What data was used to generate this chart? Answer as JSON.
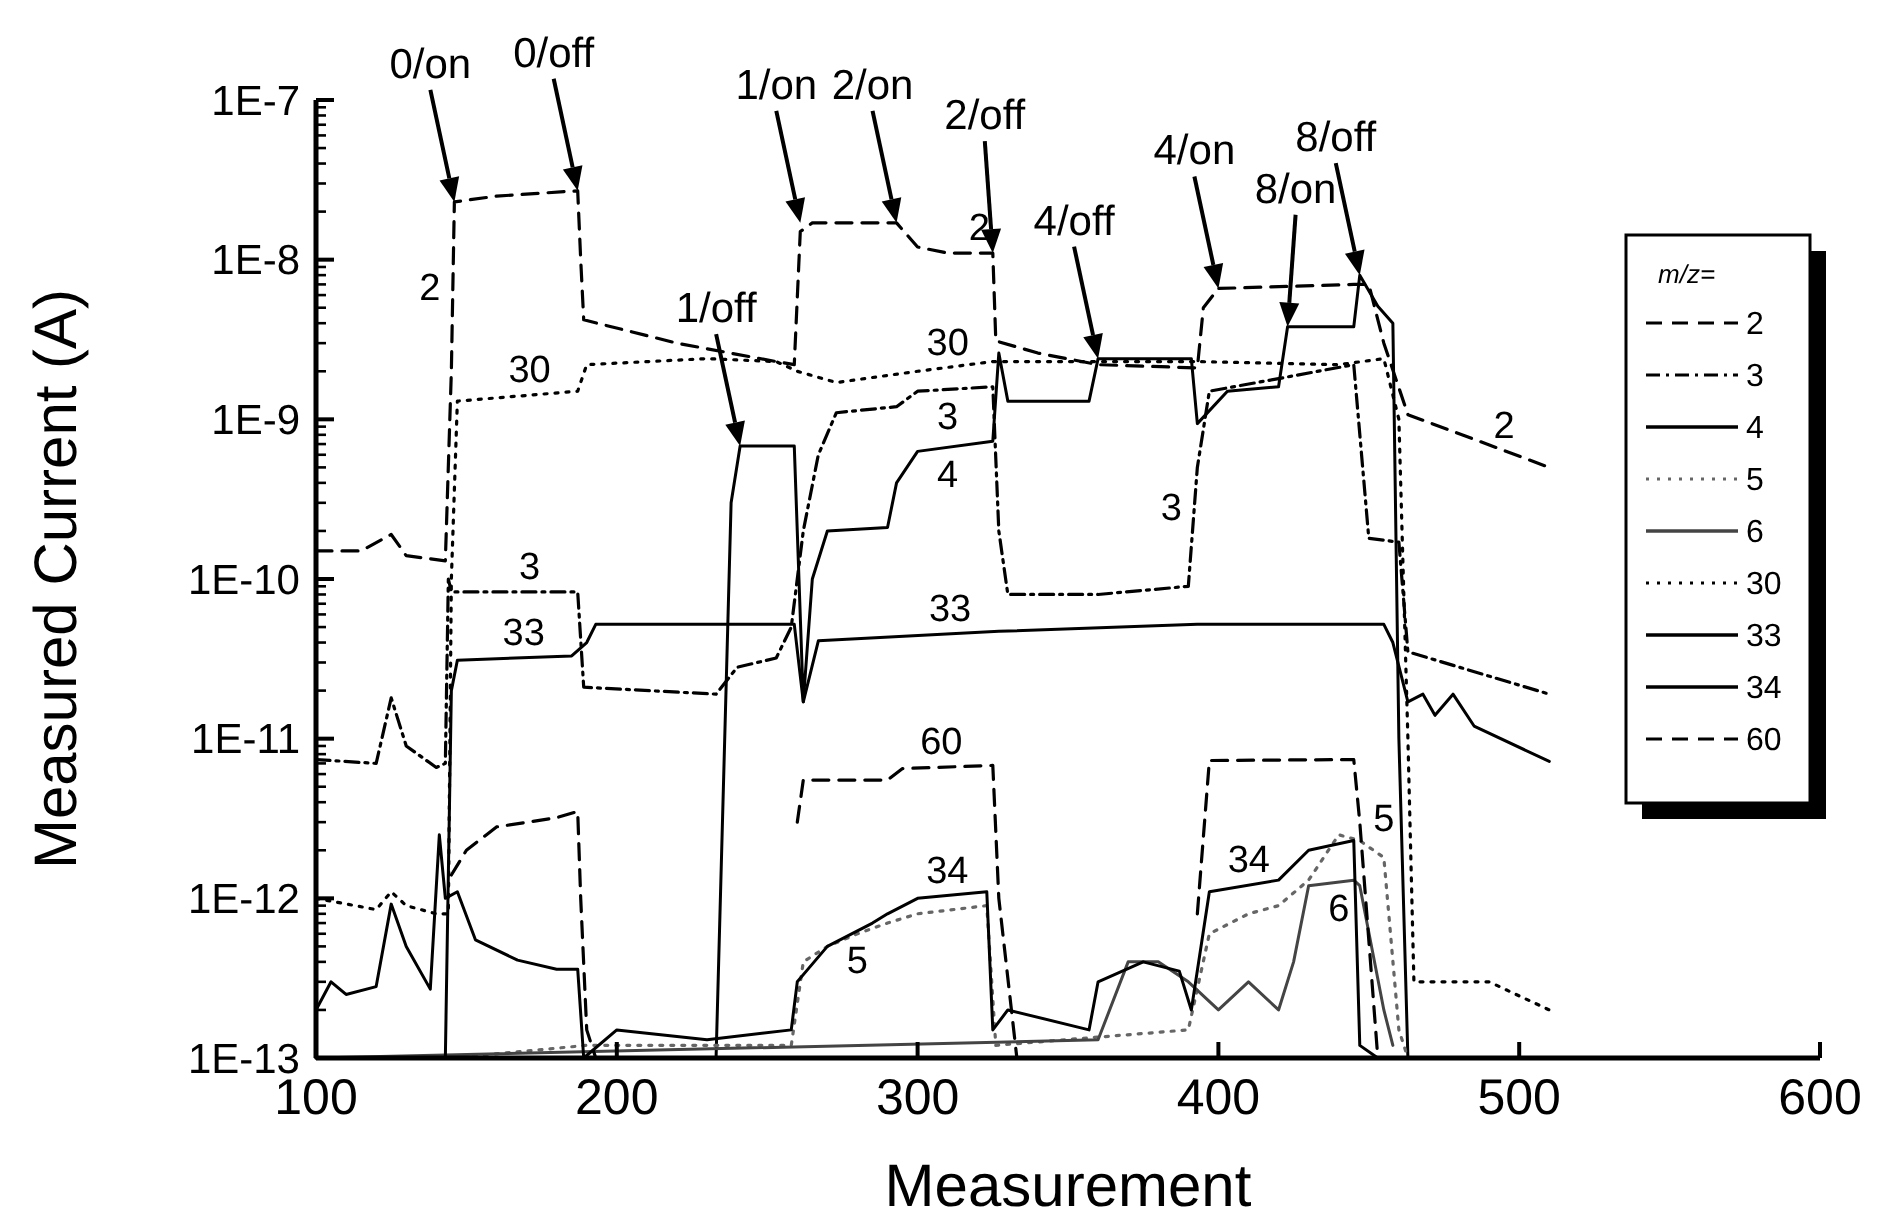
{
  "chart_data": {
    "type": "line",
    "xlabel": "Measurement",
    "ylabel": "Measured Current (A)",
    "legend_title": "m/z=",
    "legend": "right",
    "log": "y",
    "grid": false,
    "xlim": [
      100,
      600
    ],
    "xticks": [
      100,
      200,
      300,
      400,
      500,
      600
    ],
    "ylim": [
      1e-13,
      1e-07
    ],
    "yticks": [
      {
        "value": 1e-13,
        "label": "1E-13"
      },
      {
        "value": 2e-13,
        "label": null
      },
      {
        "value": 3e-13,
        "label": null
      },
      {
        "value": 4e-13,
        "label": null
      },
      {
        "value": 5e-13,
        "label": null
      },
      {
        "value": 6e-13,
        "label": null
      },
      {
        "value": 7e-13,
        "label": null
      },
      {
        "value": 8e-13,
        "label": null
      },
      {
        "value": 9e-13,
        "label": null
      },
      {
        "value": 1e-12,
        "label": "1E-12"
      },
      {
        "value": 2e-12,
        "label": null
      },
      {
        "value": 3e-12,
        "label": null
      },
      {
        "value": 4e-12,
        "label": null
      },
      {
        "value": 5e-12,
        "label": null
      },
      {
        "value": 6e-12,
        "label": null
      },
      {
        "value": 7e-12,
        "label": null
      },
      {
        "value": 8e-12,
        "label": null
      },
      {
        "value": 9e-12,
        "label": null
      },
      {
        "value": 1e-11,
        "label": "1E-11"
      },
      {
        "value": 2e-11,
        "label": null
      },
      {
        "value": 3e-11,
        "label": null
      },
      {
        "value": 4e-11,
        "label": null
      },
      {
        "value": 5e-11,
        "label": null
      },
      {
        "value": 6e-11,
        "label": null
      },
      {
        "value": 7e-11,
        "label": null
      },
      {
        "value": 8e-11,
        "label": null
      },
      {
        "value": 9e-11,
        "label": null
      },
      {
        "value": 1e-10,
        "label": "1E-10"
      },
      {
        "value": 2e-10,
        "label": null
      },
      {
        "value": 3e-10,
        "label": null
      },
      {
        "value": 4e-10,
        "label": null
      },
      {
        "value": 5e-10,
        "label": null
      },
      {
        "value": 6e-10,
        "label": null
      },
      {
        "value": 7e-10,
        "label": null
      },
      {
        "value": 8e-10,
        "label": null
      },
      {
        "value": 9e-10,
        "label": null
      },
      {
        "value": 1e-09,
        "label": "1E-9"
      },
      {
        "value": 2e-09,
        "label": null
      },
      {
        "value": 3e-09,
        "label": null
      },
      {
        "value": 4e-09,
        "label": null
      },
      {
        "value": 5e-09,
        "label": null
      },
      {
        "value": 6e-09,
        "label": null
      },
      {
        "value": 7e-09,
        "label": null
      },
      {
        "value": 8e-09,
        "label": null
      },
      {
        "value": 9e-09,
        "label": null
      },
      {
        "value": 1e-08,
        "label": "1E-8"
      },
      {
        "value": 2e-08,
        "label": null
      },
      {
        "value": 3e-08,
        "label": null
      },
      {
        "value": 4e-08,
        "label": null
      },
      {
        "value": 5e-08,
        "label": null
      },
      {
        "value": 6e-08,
        "label": null
      },
      {
        "value": 7e-08,
        "label": null
      },
      {
        "value": 8e-08,
        "label": null
      },
      {
        "value": 9e-08,
        "label": null
      },
      {
        "value": 1e-07,
        "label": "1E-7"
      }
    ],
    "series": [
      {
        "name": "2",
        "color": "#000000",
        "line_style": "dashed",
        "x": [
          100,
          115,
          125,
          130,
          143,
          145,
          146,
          160,
          187,
          188,
          189,
          220,
          253,
          259,
          261,
          265,
          293,
          300,
          310,
          325,
          326,
          340,
          360,
          393,
          395,
          400,
          445,
          450,
          455,
          463,
          510
        ],
        "values": [
          1.5e-10,
          1.5e-10,
          1.9e-10,
          1.4e-10,
          1.3e-10,
          2e-09,
          2.3e-08,
          2.5e-08,
          2.7e-08,
          1e-08,
          4.2e-09,
          3e-09,
          2.3e-09,
          2.2e-09,
          1.5e-08,
          1.7e-08,
          1.7e-08,
          1.2e-08,
          1.1e-08,
          1.1e-08,
          3.1e-09,
          2.6e-09,
          2.2e-09,
          2.1e-09,
          5e-09,
          6.6e-09,
          7e-09,
          7e-09,
          3e-09,
          1.07e-09,
          5e-10
        ]
      },
      {
        "name": "3",
        "color": "#000000",
        "line_style": "dashdot",
        "x": [
          100,
          120,
          125,
          130,
          140,
          143,
          144,
          145,
          187,
          189,
          233,
          240,
          253,
          258,
          262,
          267,
          273,
          293,
          300,
          325,
          327,
          330,
          360,
          390,
          393,
          397,
          420,
          445,
          450,
          460,
          463,
          510
        ],
        "values": [
          7.4e-12,
          7e-12,
          1.8e-11,
          9e-12,
          6.6e-12,
          7e-12,
          1e-10,
          8.3e-11,
          8.3e-11,
          2.1e-11,
          1.9e-11,
          2.8e-11,
          3.2e-11,
          5e-11,
          2e-10,
          6e-10,
          1.1e-09,
          1.2e-09,
          1.5e-09,
          1.6e-09,
          2e-10,
          8e-11,
          8e-11,
          9e-11,
          5e-10,
          1.5e-09,
          1.8e-09,
          2.2e-09,
          1.8e-10,
          1.7e-10,
          3.5e-11,
          1.9e-11
        ]
      },
      {
        "name": "4",
        "color": "#000000",
        "line_style": "solid",
        "x": [
          100,
          233,
          238,
          241,
          259,
          262,
          265,
          270,
          290,
          293,
          300,
          325,
          327,
          330,
          357,
          360,
          391,
          393,
          403,
          420,
          423,
          445,
          447,
          453,
          458,
          460,
          463
        ],
        "values": [
          1e-13,
          1e-13,
          3e-10,
          6.8e-10,
          6.8e-10,
          1.7e-11,
          1e-10,
          2e-10,
          2.1e-10,
          4e-10,
          6.3e-10,
          7.3e-10,
          2.6e-09,
          1.3e-09,
          1.3e-09,
          2.4e-09,
          2.4e-09,
          9.4e-10,
          1.5e-09,
          1.6e-09,
          3.8e-09,
          3.8e-09,
          8e-09,
          5.1e-09,
          4e-09,
          1e-11,
          1e-13
        ]
      },
      {
        "name": "5",
        "color": "#666666",
        "line_style": "dotted",
        "x": [
          145,
          190,
          258,
          262,
          270,
          280,
          290,
          300,
          323,
          326,
          390,
          397,
          410,
          420,
          430,
          440,
          447,
          455,
          460,
          463
        ],
        "values": [
          1e-13,
          1.2e-13,
          1.2e-13,
          4e-13,
          5e-13,
          6e-13,
          7e-13,
          8e-13,
          9e-13,
          1.2e-13,
          1.5e-13,
          6e-13,
          8e-13,
          9e-13,
          1.3e-12,
          2.5e-12,
          2.3e-12,
          1.8e-12,
          1.5e-13,
          1e-13
        ]
      },
      {
        "name": "6",
        "color": "#444444",
        "line_style": "solid",
        "x": [
          100,
          360,
          370,
          380,
          390,
          400,
          410,
          420,
          425,
          430,
          445,
          447,
          455,
          458
        ],
        "values": [
          1e-13,
          1.3e-13,
          4e-13,
          4e-13,
          3e-13,
          2e-13,
          3e-13,
          2e-13,
          4e-13,
          1.2e-12,
          1.3e-12,
          1.2e-12,
          2e-13,
          1.2e-13
        ]
      },
      {
        "name": "30",
        "color": "#000000",
        "line_style": "dotted",
        "x": [
          100,
          120,
          125,
          130,
          140,
          144,
          145,
          147,
          187,
          190,
          230,
          253,
          260,
          273,
          300,
          325,
          393,
          440,
          455,
          460,
          463,
          465,
          490,
          510
        ],
        "values": [
          1e-12,
          8.5e-13,
          1.1e-12,
          9e-13,
          8e-13,
          8e-13,
          1e-10,
          1.3e-09,
          1.5e-09,
          2.2e-09,
          2.4e-09,
          2.3e-09,
          2e-09,
          1.7e-09,
          2e-09,
          2.3e-09,
          2.3e-09,
          2.2e-09,
          2.4e-09,
          1e-09,
          1e-11,
          3e-13,
          3e-13,
          2e-13
        ]
      },
      {
        "name": "33",
        "color": "#000000",
        "line_style": "solid",
        "x": [
          100,
          143,
          145,
          147,
          185,
          190,
          193,
          259,
          262,
          267,
          327,
          393,
          455,
          458,
          463,
          468,
          472,
          478,
          485,
          510
        ],
        "values": [
          1e-13,
          1e-13,
          2e-11,
          3.1e-11,
          3.3e-11,
          4e-11,
          5.2e-11,
          5.2e-11,
          1.7e-11,
          4.1e-11,
          4.7e-11,
          5.2e-11,
          5.2e-11,
          4e-11,
          1.7e-11,
          1.9e-11,
          1.4e-11,
          1.9e-11,
          1.2e-11,
          7.2e-12
        ]
      },
      {
        "name": "34",
        "color": "#000000",
        "line_style": "solid",
        "x": [
          100,
          105,
          110,
          120,
          125,
          130,
          138,
          141,
          143,
          147,
          153,
          167,
          180,
          187,
          189,
          200,
          230,
          258,
          260,
          263,
          270,
          285,
          290,
          300,
          323,
          325,
          330,
          357,
          360,
          375,
          387,
          391,
          397,
          420,
          430,
          445,
          447,
          453
        ],
        "values": [
          2e-13,
          3e-13,
          2.5e-13,
          2.8e-13,
          9.2e-13,
          5e-13,
          2.7e-13,
          2.5e-12,
          1e-12,
          1.1e-12,
          5.5e-13,
          4.1e-13,
          3.6e-13,
          3.6e-13,
          1e-13,
          1.5e-13,
          1.3e-13,
          1.5e-13,
          3e-13,
          3.5e-13,
          5e-13,
          7e-13,
          8e-13,
          1e-12,
          1.1e-12,
          1.5e-13,
          2e-13,
          1.5e-13,
          3e-13,
          4e-13,
          3.5e-13,
          2e-13,
          1.1e-12,
          1.3e-12,
          2e-12,
          2.3e-12,
          1.2e-13,
          1e-13
        ]
      },
      {
        "name": "60",
        "color": "#000000",
        "line_style": "dashed",
        "x": [
          145,
          150,
          160,
          180,
          187,
          188,
          190,
          193,
          200,
          260,
          262,
          290,
          295,
          325,
          327,
          333,
          340,
          393,
          397,
          445,
          447,
          453
        ],
        "values": [
          1.4e-12,
          2e-12,
          2.8e-12,
          3.2e-12,
          3.5e-12,
          1e-12,
          1.5e-13,
          1e-13,
          null,
          3e-12,
          5.5e-12,
          5.5e-12,
          6.5e-12,
          6.8e-12,
          1e-12,
          1e-13,
          null,
          8e-13,
          7.3e-12,
          7.4e-12,
          3e-12,
          1e-13
        ]
      }
    ],
    "annotations": [
      {
        "text": "0/on",
        "x": 146,
        "y": 2.3e-08
      },
      {
        "text": "0/off",
        "x": 187,
        "y": 2.7e-08
      },
      {
        "text": "1/off",
        "x": 241,
        "y": 6.8e-10
      },
      {
        "text": "1/on",
        "x": 261,
        "y": 1.7e-08
      },
      {
        "text": "2/on",
        "x": 293,
        "y": 1.7e-08
      },
      {
        "text": "2/off",
        "x": 325,
        "y": 1.1e-08
      },
      {
        "text": "4/off",
        "x": 360,
        "y": 2.4e-09
      },
      {
        "text": "4/on",
        "x": 400,
        "y": 6.6e-09
      },
      {
        "text": "8/on",
        "x": 423,
        "y": 3.8e-09
      },
      {
        "text": "8/off",
        "x": 447,
        "y": 8e-09
      }
    ]
  }
}
